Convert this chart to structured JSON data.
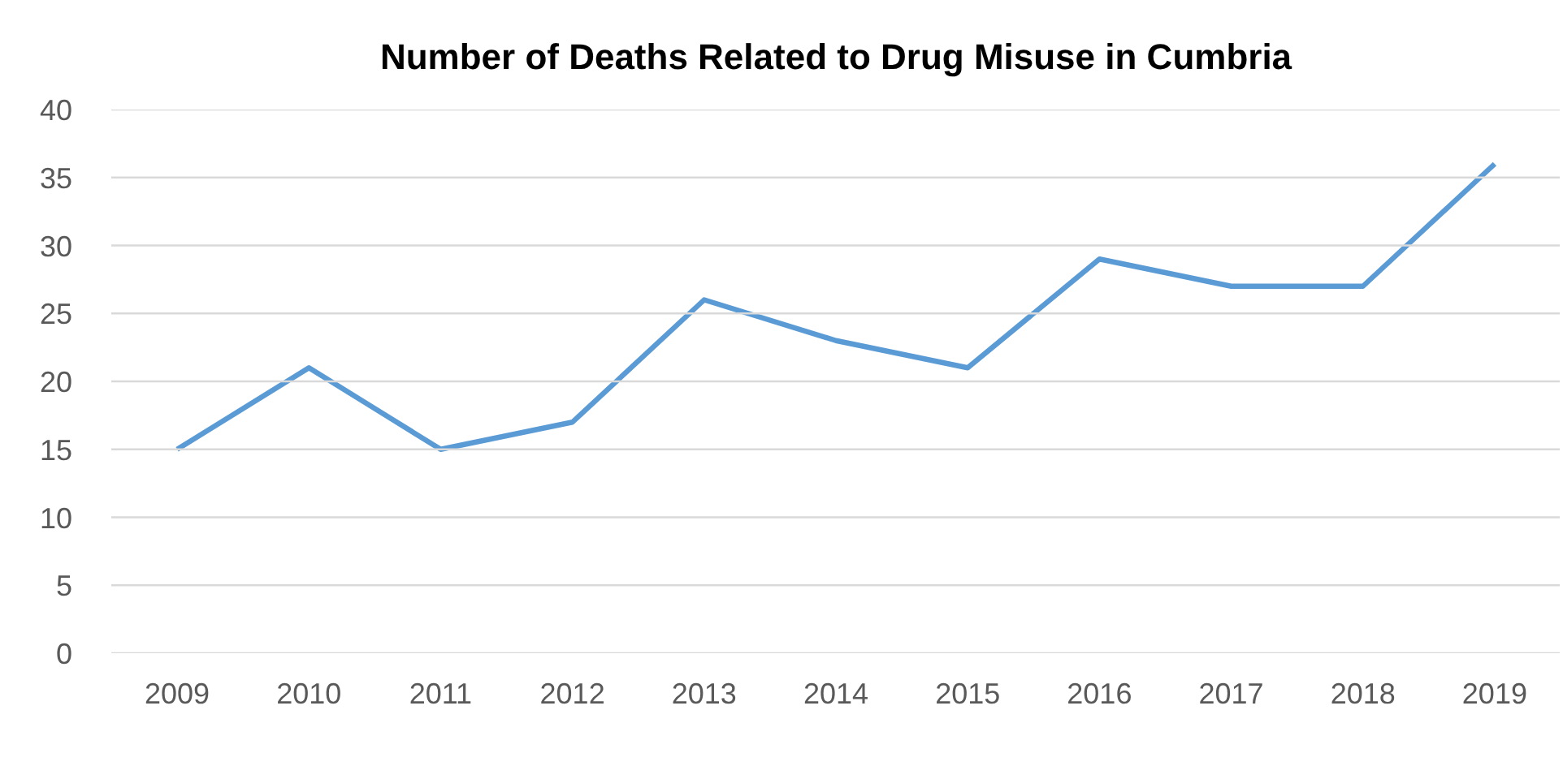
{
  "chart_data": {
    "type": "line",
    "title": "Number of Deaths Related to Drug Misuse in Cumbria",
    "categories": [
      "2009",
      "2010",
      "2011",
      "2012",
      "2013",
      "2014",
      "2015",
      "2016",
      "2017",
      "2018",
      "2019"
    ],
    "series": [
      {
        "color": "#5b9bd5",
        "values": [
          15,
          21,
          15,
          17,
          26,
          23,
          21,
          29,
          27,
          27,
          36
        ]
      }
    ],
    "ylim": [
      0,
      40
    ],
    "yticks": [
      0,
      5,
      10,
      15,
      20,
      25,
      30,
      35,
      40
    ],
    "grid": "y",
    "line_style": "solid"
  }
}
